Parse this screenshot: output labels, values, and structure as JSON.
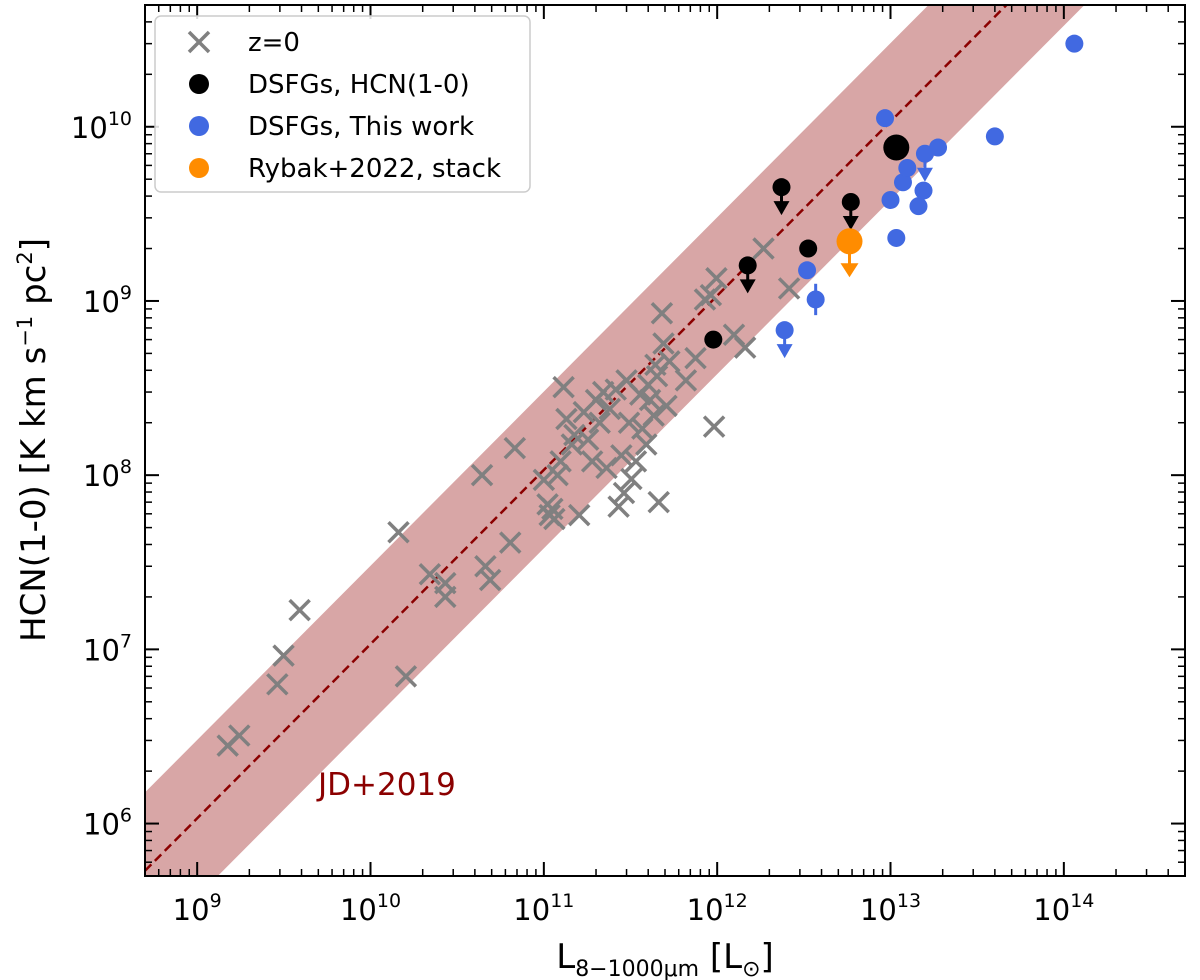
{
  "chart_data": {
    "type": "scatter",
    "xscale": "log",
    "yscale": "log",
    "xlim": [
      500000000,
      500000000000000
    ],
    "ylim": [
      500000,
      50000000000
    ],
    "xticks": [
      {
        "value": 1000000000.0,
        "base": "10",
        "exp": "9"
      },
      {
        "value": 10000000000.0,
        "base": "10",
        "exp": "10"
      },
      {
        "value": 100000000000.0,
        "base": "10",
        "exp": "11"
      },
      {
        "value": 1000000000000.0,
        "base": "10",
        "exp": "12"
      },
      {
        "value": 10000000000000.0,
        "base": "10",
        "exp": "13"
      },
      {
        "value": 100000000000000.0,
        "base": "10",
        "exp": "14"
      }
    ],
    "yticks": [
      {
        "value": 1000000.0,
        "base": "10",
        "exp": "6"
      },
      {
        "value": 10000000.0,
        "base": "10",
        "exp": "7"
      },
      {
        "value": 100000000.0,
        "base": "10",
        "exp": "8"
      },
      {
        "value": 1000000000.0,
        "base": "10",
        "exp": "9"
      },
      {
        "value": 10000000000.0,
        "base": "10",
        "exp": "10"
      }
    ],
    "xlabel": {
      "main": "L",
      "sub": "8−1000μm",
      "unit_open": " [L",
      "unit_sym": "⊙",
      "unit_close": "]"
    },
    "ylabel": {
      "main": "HCN(1-0) [K km s",
      "sup1": "−1",
      "mid": " pc",
      "sup2": "2",
      "close": "]"
    },
    "grid": false,
    "legend_position": "top-left",
    "relation": {
      "label": "JD+2019",
      "slope": 1.0,
      "intercept_log": -2.97,
      "band_halfwidth_dex": 0.45,
      "line_color": "#8b0000",
      "band_color": "#d8a6a6"
    },
    "series": [
      {
        "name": "z=0",
        "marker": "x",
        "color": "#808080",
        "points": [
          [
            1500000000.0,
            2800000.0
          ],
          [
            1750000000.0,
            3200000.0
          ],
          [
            2900000000.0,
            6300000.0
          ],
          [
            3150000000.0,
            9200000.0
          ],
          [
            3900000000.0,
            16800000.0
          ],
          [
            14500000000.0,
            47000000.0
          ],
          [
            16000000000.0,
            7000000.0
          ],
          [
            22000000000.0,
            27000000.0
          ],
          [
            27000000000.0,
            20000000.0
          ],
          [
            27000000000.0,
            24000000.0
          ],
          [
            44000000000.0,
            100000000.0
          ],
          [
            46000000000.0,
            30000000.0
          ],
          [
            49000000000.0,
            25000000.0
          ],
          [
            64000000000.0,
            41000000.0
          ],
          [
            68000000000.0,
            143000000.0
          ],
          [
            100000000000.0,
            94000000.0
          ],
          [
            105000000000.0,
            68000000.0
          ],
          [
            108000000000.0,
            59000000.0
          ],
          [
            112000000000.0,
            64000000.0
          ],
          [
            115000000000.0,
            56000000.0
          ],
          [
            120000000000.0,
            100000000.0
          ],
          [
            125000000000.0,
            120000000.0
          ],
          [
            130000000000.0,
            320000000.0
          ],
          [
            135000000000.0,
            210000000.0
          ],
          [
            145000000000.0,
            150000000.0
          ],
          [
            150000000000.0,
            170000000.0
          ],
          [
            160000000000.0,
            59000000.0
          ],
          [
            170000000000.0,
            230000000.0
          ],
          [
            180000000000.0,
            160000000.0
          ],
          [
            190000000000.0,
            120000000.0
          ],
          [
            200000000000.0,
            270000000.0
          ],
          [
            210000000000.0,
            200000000.0
          ],
          [
            220000000000.0,
            300000000.0
          ],
          [
            230000000000.0,
            110000000.0
          ],
          [
            240000000000.0,
            240000000.0
          ],
          [
            260000000000.0,
            310000000.0
          ],
          [
            270000000000.0,
            66000000.0
          ],
          [
            280000000000.0,
            130000000.0
          ],
          [
            290000000000.0,
            79000000.0
          ],
          [
            300000000000.0,
            350000000.0
          ],
          [
            310000000000.0,
            200000000.0
          ],
          [
            320000000000.0,
            95000000.0
          ],
          [
            340000000000.0,
            120000000.0
          ],
          [
            360000000000.0,
            290000000.0
          ],
          [
            370000000000.0,
            185000000.0
          ],
          [
            390000000000.0,
            150000000.0
          ],
          [
            400000000000.0,
            330000000.0
          ],
          [
            410000000000.0,
            270000000.0
          ],
          [
            430000000000.0,
            220000000.0
          ],
          [
            440000000000.0,
            430000000.0
          ],
          [
            450000000000.0,
            370000000.0
          ],
          [
            460000000000.0,
            70000000.0
          ],
          [
            480000000000.0,
            850000000.0
          ],
          [
            490000000000.0,
            570000000.0
          ],
          [
            510000000000.0,
            250000000.0
          ],
          [
            530000000000.0,
            450000000.0
          ],
          [
            660000000000.0,
            350000000.0
          ],
          [
            750000000000.0,
            470000000.0
          ],
          [
            850000000000.0,
            1020000000.0
          ],
          [
            920000000000.0,
            1080000000.0
          ],
          [
            960000000000.0,
            190000000.0
          ],
          [
            990000000000.0,
            1350000000.0
          ],
          [
            1250000000000.0,
            640000000.0
          ],
          [
            1450000000000.0,
            540000000.0
          ],
          [
            1850000000000.0,
            2000000000.0
          ],
          [
            2600000000000.0,
            1180000000.0
          ]
        ]
      },
      {
        "name": "DSFGs, HCN(1-0)",
        "marker": "o",
        "color": "#000000",
        "points": [
          {
            "x": 950000000000.0,
            "y": 600000000.0
          },
          {
            "x": 1500000000000.0,
            "y": 1600000000.0,
            "upper": true
          },
          {
            "x": 2350000000000.0,
            "y": 4500000000.0,
            "upper": true
          },
          {
            "x": 3350000000000.0,
            "y": 2000000000.0
          },
          {
            "x": 5900000000000.0,
            "y": 3700000000.0,
            "upper": true
          },
          {
            "x": 10800000000000.0,
            "y": 7600000000.0,
            "size": "large"
          }
        ]
      },
      {
        "name": "DSFGs, This work",
        "marker": "o",
        "color": "#4169e1",
        "points": [
          {
            "x": 2450000000000.0,
            "y": 680000000.0,
            "upper": true
          },
          {
            "x": 3300000000000.0,
            "y": 1500000000.0
          },
          {
            "x": 3700000000000.0,
            "y": 1020000000.0,
            "yerr": 0.09
          },
          {
            "x": 9300000000000.0,
            "y": 11200000000.0
          },
          {
            "x": 10000000000000.0,
            "y": 3800000000.0
          },
          {
            "x": 10800000000000.0,
            "y": 2300000000.0
          },
          {
            "x": 11800000000000.0,
            "y": 4800000000.0
          },
          {
            "x": 12500000000000.0,
            "y": 5800000000.0
          },
          {
            "x": 14500000000000.0,
            "y": 3500000000.0
          },
          {
            "x": 15500000000000.0,
            "y": 4300000000.0
          },
          {
            "x": 15800000000000.0,
            "y": 7000000000.0,
            "upper": true
          },
          {
            "x": 18800000000000.0,
            "y": 7600000000.0
          },
          {
            "x": 40000000000000.0,
            "y": 8800000000.0,
            "yerr": 0.04
          },
          {
            "x": 115000000000000.0,
            "y": 30000000000.0
          }
        ]
      },
      {
        "name": "Rybak+2022, stack",
        "marker": "o",
        "color": "#ff8c00",
        "points": [
          {
            "x": 5800000000000.0,
            "y": 2200000000.0,
            "upper": true,
            "size": "large"
          }
        ]
      }
    ]
  }
}
